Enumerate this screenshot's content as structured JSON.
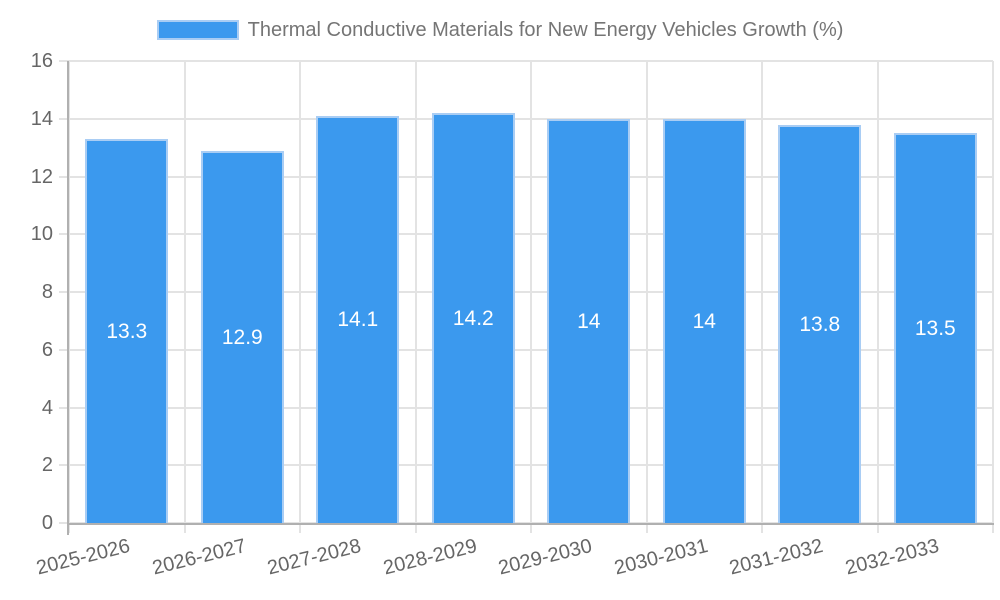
{
  "legend": {
    "label": "Thermal Conductive Materials for New Energy Vehicles Growth (%)"
  },
  "chart_data": {
    "type": "bar",
    "title": "Thermal Conductive Materials for New Energy Vehicles Growth (%)",
    "categories": [
      "2025-2026",
      "2026-2027",
      "2027-2028",
      "2028-2029",
      "2029-2030",
      "2030-2031",
      "2031-2032",
      "2032-2033"
    ],
    "values": [
      13.3,
      12.9,
      14.1,
      14.2,
      14,
      14,
      13.8,
      13.5
    ],
    "xlabel": "",
    "ylabel": "",
    "ylim": [
      0,
      16
    ],
    "yticks": [
      0,
      2,
      4,
      6,
      8,
      10,
      12,
      14,
      16
    ],
    "grid": true,
    "legend_position": "top",
    "x_tick_rotation_deg": -14,
    "colors": {
      "bar_fill": "#3b99ee",
      "bar_border": "#a9cdf4",
      "value_label": "#ffffff",
      "grid_line": "#e3e3e3",
      "axis_line": "#b0b0b0",
      "tick_text": "#666666",
      "legend_text": "#757575"
    }
  }
}
